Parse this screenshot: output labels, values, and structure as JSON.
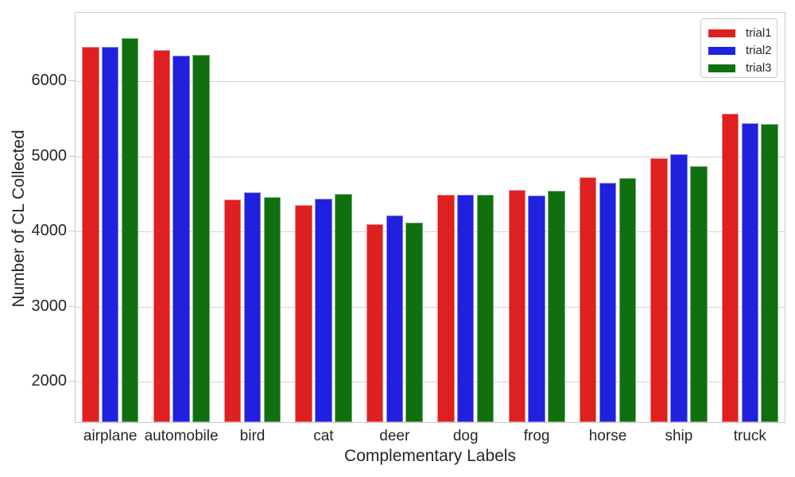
{
  "chart_data": {
    "type": "bar",
    "title": "",
    "xlabel": "Complementary Labels",
    "ylabel": "Number of CL Collected",
    "categories": [
      "airplane",
      "automobile",
      "bird",
      "cat",
      "deer",
      "dog",
      "frog",
      "horse",
      "ship",
      "truck"
    ],
    "series": [
      {
        "name": "trial1",
        "color": "#df2020",
        "values": [
          6445,
          6400,
          4415,
          4340,
          4085,
          4480,
          4535,
          4705,
          4965,
          5560
        ]
      },
      {
        "name": "trial2",
        "color": "#2020df",
        "values": [
          6440,
          6325,
          4505,
          4425,
          4205,
          4475,
          4470,
          4630,
          5015,
          5425
        ]
      },
      {
        "name": "trial3",
        "color": "#107010",
        "values": [
          6565,
          6340,
          4445,
          4490,
          4110,
          4480,
          4525,
          4695,
          4860,
          5415
        ]
      }
    ],
    "yticks": [
      2000,
      3000,
      4000,
      5000,
      6000
    ],
    "ylim": [
      1440,
      6910
    ],
    "grid": "horizontal",
    "legend_position": "upper right",
    "colors": {
      "background": "#ffffff",
      "grid": "#d4d4d4",
      "frame": "#c9c9c9",
      "text": "#262626"
    }
  }
}
